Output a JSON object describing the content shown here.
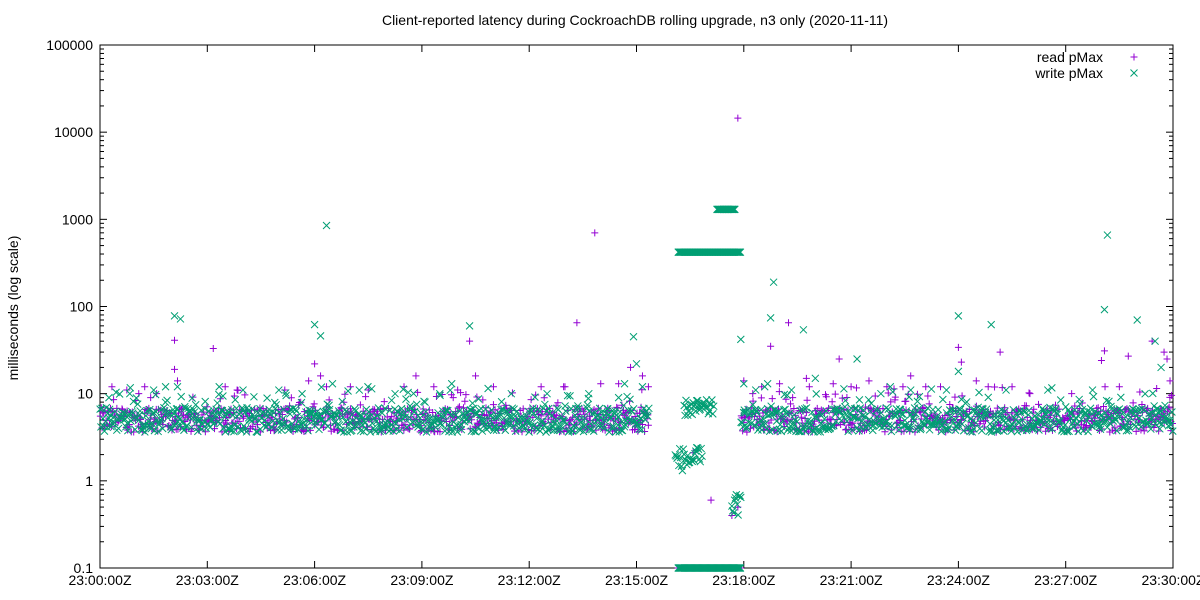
{
  "chart_data": {
    "type": "scatter",
    "title": "Client-reported latency during CockroachDB rolling upgrade, n3 only (2020-11-11)",
    "ylabel": "milliseconds (log scale)",
    "y_scale": "log",
    "ylim": [
      0.1,
      100000
    ],
    "y_ticks": [
      {
        "value": 0.1,
        "label": "0.1"
      },
      {
        "value": 1,
        "label": "1"
      },
      {
        "value": 10,
        "label": "10"
      },
      {
        "value": 100,
        "label": "100"
      },
      {
        "value": 1000,
        "label": "1000"
      },
      {
        "value": 10000,
        "label": "10000"
      },
      {
        "value": 100000,
        "label": "100000"
      }
    ],
    "xlim": [
      "23:00:00Z",
      "23:30:00Z"
    ],
    "x_ticks": [
      "23:00:00Z",
      "23:03:00Z",
      "23:06:00Z",
      "23:09:00Z",
      "23:12:00Z",
      "23:15:00Z",
      "23:18:00Z",
      "23:21:00Z",
      "23:24:00Z",
      "23:27:00Z",
      "23:30:00Z"
    ],
    "grid": false,
    "legend_position": "top-right",
    "series": [
      {
        "name": "read pMax",
        "marker": "plus",
        "color": "#9400d3",
        "baseline_segments": [
          {
            "from": "23:00:00Z",
            "to": "23:15:20Z",
            "median": 5.0,
            "low": 3.5,
            "high": 12
          },
          {
            "from": "23:17:55Z",
            "to": "23:30:00Z",
            "median": 5.0,
            "low": 3.5,
            "high": 12
          }
        ],
        "points": [
          {
            "x": "23:00:20Z",
            "y": 12
          },
          {
            "x": "23:00:45Z",
            "y": 11
          },
          {
            "x": "23:01:05Z",
            "y": 10
          },
          {
            "x": "23:01:15Z",
            "y": 12
          },
          {
            "x": "23:01:25Z",
            "y": 9
          },
          {
            "x": "23:01:35Z",
            "y": 10
          },
          {
            "x": "23:02:05Z",
            "y": 19
          },
          {
            "x": "23:02:05Z",
            "y": 41
          },
          {
            "x": "23:02:10Z",
            "y": 14
          },
          {
            "x": "23:03:10Z",
            "y": 33
          },
          {
            "x": "23:03:30Z",
            "y": 12
          },
          {
            "x": "23:03:50Z",
            "y": 11
          },
          {
            "x": "23:05:10Z",
            "y": 11
          },
          {
            "x": "23:05:50Z",
            "y": 14
          },
          {
            "x": "23:06:00Z",
            "y": 22
          },
          {
            "x": "23:06:10Z",
            "y": 16
          },
          {
            "x": "23:06:20Z",
            "y": 12
          },
          {
            "x": "23:07:00Z",
            "y": 12
          },
          {
            "x": "23:07:30Z",
            "y": 11
          },
          {
            "x": "23:08:30Z",
            "y": 12
          },
          {
            "x": "23:08:50Z",
            "y": 16
          },
          {
            "x": "23:09:20Z",
            "y": 12
          },
          {
            "x": "23:10:00Z",
            "y": 11
          },
          {
            "x": "23:10:20Z",
            "y": 40
          },
          {
            "x": "23:10:30Z",
            "y": 16
          },
          {
            "x": "23:11:00Z",
            "y": 12
          },
          {
            "x": "23:12:20Z",
            "y": 12
          },
          {
            "x": "23:13:00Z",
            "y": 12
          },
          {
            "x": "23:13:20Z",
            "y": 65
          },
          {
            "x": "23:13:50Z",
            "y": 700
          },
          {
            "x": "23:14:00Z",
            "y": 13
          },
          {
            "x": "23:14:30Z",
            "y": 13
          },
          {
            "x": "23:14:50Z",
            "y": 20
          },
          {
            "x": "23:15:10Z",
            "y": 16
          },
          {
            "x": "23:15:20Z",
            "y": 12
          },
          {
            "x": "23:16:35Z",
            "y": 2.1
          },
          {
            "x": "23:17:05Z",
            "y": 0.6
          },
          {
            "x": "23:17:40Z",
            "y": 0.4
          },
          {
            "x": "23:17:50Z",
            "y": 0.5
          },
          {
            "x": "23:17:50Z",
            "y": 14500
          },
          {
            "x": "23:18:00Z",
            "y": 14
          },
          {
            "x": "23:18:15Z",
            "y": 10
          },
          {
            "x": "23:18:30Z",
            "y": 12
          },
          {
            "x": "23:18:45Z",
            "y": 35
          },
          {
            "x": "23:19:00Z",
            "y": 13
          },
          {
            "x": "23:19:15Z",
            "y": 65
          },
          {
            "x": "23:19:45Z",
            "y": 15
          },
          {
            "x": "23:20:30Z",
            "y": 13
          },
          {
            "x": "23:20:40Z",
            "y": 25
          },
          {
            "x": "23:21:00Z",
            "y": 12
          },
          {
            "x": "23:21:30Z",
            "y": 14
          },
          {
            "x": "23:22:00Z",
            "y": 12
          },
          {
            "x": "23:22:40Z",
            "y": 16
          },
          {
            "x": "23:23:30Z",
            "y": 12
          },
          {
            "x": "23:24:00Z",
            "y": 34
          },
          {
            "x": "23:24:05Z",
            "y": 23
          },
          {
            "x": "23:24:30Z",
            "y": 14
          },
          {
            "x": "23:24:50Z",
            "y": 12
          },
          {
            "x": "23:25:10Z",
            "y": 30
          },
          {
            "x": "23:25:30Z",
            "y": 12
          },
          {
            "x": "23:26:00Z",
            "y": 10
          },
          {
            "x": "23:27:10Z",
            "y": 10
          },
          {
            "x": "23:28:00Z",
            "y": 24
          },
          {
            "x": "23:28:05Z",
            "y": 31
          },
          {
            "x": "23:28:30Z",
            "y": 12
          },
          {
            "x": "23:28:45Z",
            "y": 27
          },
          {
            "x": "23:29:25Z",
            "y": 40
          },
          {
            "x": "23:29:45Z",
            "y": 30
          },
          {
            "x": "23:29:50Z",
            "y": 25
          },
          {
            "x": "23:29:55Z",
            "y": 14
          }
        ],
        "floor_band": {
          "from": "23:16:10Z",
          "to": "23:17:55Z",
          "y": 0.1
        }
      },
      {
        "name": "write pMax",
        "marker": "cross",
        "color": "#009e73",
        "baseline_segments": [
          {
            "from": "23:00:00Z",
            "to": "23:15:20Z",
            "median": 5.0,
            "low": 3.5,
            "high": 12
          },
          {
            "from": "23:17:55Z",
            "to": "23:30:00Z",
            "median": 5.0,
            "low": 3.5,
            "high": 12
          }
        ],
        "points": [
          {
            "x": "23:00:15Z",
            "y": 9
          },
          {
            "x": "23:00:50Z",
            "y": 10
          },
          {
            "x": "23:01:30Z",
            "y": 11
          },
          {
            "x": "23:01:50Z",
            "y": 12
          },
          {
            "x": "23:02:05Z",
            "y": 78
          },
          {
            "x": "23:02:15Z",
            "y": 72
          },
          {
            "x": "23:02:10Z",
            "y": 12
          },
          {
            "x": "23:03:20Z",
            "y": 12
          },
          {
            "x": "23:04:00Z",
            "y": 11
          },
          {
            "x": "23:05:00Z",
            "y": 11
          },
          {
            "x": "23:06:00Z",
            "y": 62
          },
          {
            "x": "23:06:10Z",
            "y": 46
          },
          {
            "x": "23:06:20Z",
            "y": 850
          },
          {
            "x": "23:06:30Z",
            "y": 13
          },
          {
            "x": "23:07:15Z",
            "y": 11
          },
          {
            "x": "23:08:15Z",
            "y": 10
          },
          {
            "x": "23:09:30Z",
            "y": 10
          },
          {
            "x": "23:09:50Z",
            "y": 13
          },
          {
            "x": "23:10:20Z",
            "y": 60
          },
          {
            "x": "23:11:30Z",
            "y": 10
          },
          {
            "x": "23:12:30Z",
            "y": 10
          },
          {
            "x": "23:13:40Z",
            "y": 10
          },
          {
            "x": "23:14:30Z",
            "y": 9
          },
          {
            "x": "23:14:40Z",
            "y": 13
          },
          {
            "x": "23:15:00Z",
            "y": 22
          },
          {
            "x": "23:14:55Z",
            "y": 45
          },
          {
            "x": "23:15:10Z",
            "y": 12
          },
          {
            "x": "23:17:55Z",
            "y": 42
          },
          {
            "x": "23:18:00Z",
            "y": 13
          },
          {
            "x": "23:18:20Z",
            "y": 11
          },
          {
            "x": "23:18:40Z",
            "y": 13
          },
          {
            "x": "23:18:50Z",
            "y": 190
          },
          {
            "x": "23:18:45Z",
            "y": 74
          },
          {
            "x": "23:19:20Z",
            "y": 11
          },
          {
            "x": "23:19:40Z",
            "y": 54
          },
          {
            "x": "23:20:00Z",
            "y": 15
          },
          {
            "x": "23:21:10Z",
            "y": 25
          },
          {
            "x": "23:21:50Z",
            "y": 10
          },
          {
            "x": "23:22:40Z",
            "y": 11
          },
          {
            "x": "23:23:40Z",
            "y": 11
          },
          {
            "x": "23:24:00Z",
            "y": 78
          },
          {
            "x": "23:24:00Z",
            "y": 18
          },
          {
            "x": "23:24:55Z",
            "y": 62
          },
          {
            "x": "23:25:20Z",
            "y": 11
          },
          {
            "x": "23:26:30Z",
            "y": 11
          },
          {
            "x": "23:27:45Z",
            "y": 11
          },
          {
            "x": "23:28:05Z",
            "y": 92
          },
          {
            "x": "23:28:10Z",
            "y": 660
          },
          {
            "x": "23:29:00Z",
            "y": 70
          },
          {
            "x": "23:29:30Z",
            "y": 40
          },
          {
            "x": "23:29:40Z",
            "y": 20
          }
        ],
        "outage_clusters": [
          {
            "from": "23:16:05Z",
            "to": "23:16:50Z",
            "low": 1.3,
            "high": 2.4
          },
          {
            "from": "23:16:20Z",
            "to": "23:17:10Z",
            "low": 5.5,
            "high": 8.5
          },
          {
            "from": "23:17:40Z",
            "to": "23:17:55Z",
            "low": 0.4,
            "high": 0.7
          }
        ],
        "plateaus": [
          {
            "from": "23:16:10Z",
            "to": "23:17:55Z",
            "y": 420
          },
          {
            "from": "23:17:15Z",
            "to": "23:17:45Z",
            "y": 1300
          }
        ],
        "floor_band": {
          "from": "23:16:10Z",
          "to": "23:17:55Z",
          "y": 0.1
        }
      }
    ]
  }
}
